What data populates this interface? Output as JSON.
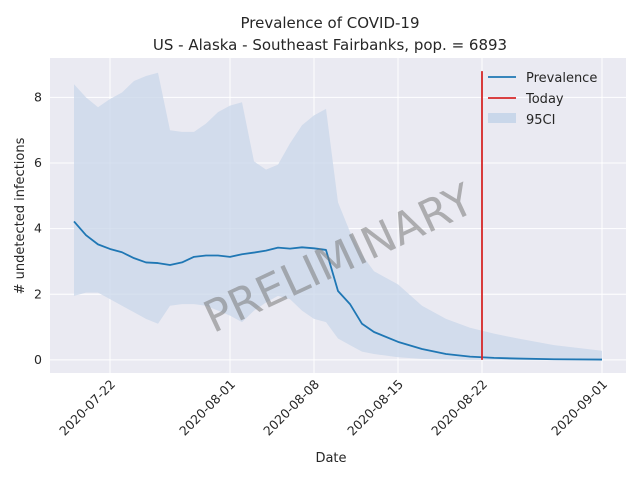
{
  "chart_data": {
    "type": "line",
    "title": "Prevalence of COVID-19",
    "subtitle": "US - Alaska - Southeast Fairbanks, pop. = 6893",
    "xlabel": "Date",
    "ylabel": "# undetected infections",
    "watermark": "PRELIMINARY",
    "x_ticks": [
      "2020-07-22",
      "2020-08-01",
      "2020-08-08",
      "2020-08-15",
      "2020-08-22",
      "2020-09-01"
    ],
    "y_ticks": [
      0,
      2,
      4,
      6,
      8
    ],
    "ylim": [
      -0.4,
      9.2
    ],
    "xlim": [
      "2020-07-17",
      "2020-09-03"
    ],
    "grid": true,
    "legend_position": "top-right",
    "legend": [
      "Prevalence",
      "Today",
      "95CI"
    ],
    "colors": {
      "prevalence": "#1f77b4",
      "today": "#d62728",
      "ci": "#c9d7ea",
      "background": "#eaeaf2",
      "grid": "#ffffff"
    },
    "today": "2020-08-22",
    "series": [
      {
        "name": "Prevalence",
        "dates": [
          "2020-07-19",
          "2020-07-20",
          "2020-07-21",
          "2020-07-22",
          "2020-07-23",
          "2020-07-24",
          "2020-07-25",
          "2020-07-26",
          "2020-07-27",
          "2020-07-28",
          "2020-07-29",
          "2020-07-30",
          "2020-07-31",
          "2020-08-01",
          "2020-08-02",
          "2020-08-03",
          "2020-08-04",
          "2020-08-05",
          "2020-08-06",
          "2020-08-07",
          "2020-08-08",
          "2020-08-09",
          "2020-08-10",
          "2020-08-11",
          "2020-08-12",
          "2020-08-13",
          "2020-08-15",
          "2020-08-17",
          "2020-08-19",
          "2020-08-21",
          "2020-08-23",
          "2020-08-25",
          "2020-08-28",
          "2020-09-01"
        ],
        "values": [
          4.22,
          3.8,
          3.52,
          3.38,
          3.28,
          3.1,
          2.97,
          2.95,
          2.89,
          2.97,
          3.14,
          3.18,
          3.18,
          3.14,
          3.22,
          3.27,
          3.33,
          3.42,
          3.39,
          3.43,
          3.4,
          3.35,
          2.1,
          1.7,
          1.1,
          0.85,
          0.55,
          0.33,
          0.18,
          0.1,
          0.06,
          0.04,
          0.02,
          0.01
        ]
      },
      {
        "name": "95CI",
        "dates": [
          "2020-07-19",
          "2020-07-20",
          "2020-07-21",
          "2020-07-22",
          "2020-07-23",
          "2020-07-24",
          "2020-07-25",
          "2020-07-26",
          "2020-07-27",
          "2020-07-28",
          "2020-07-29",
          "2020-07-30",
          "2020-07-31",
          "2020-08-01",
          "2020-08-02",
          "2020-08-03",
          "2020-08-04",
          "2020-08-05",
          "2020-08-06",
          "2020-08-07",
          "2020-08-08",
          "2020-08-09",
          "2020-08-10",
          "2020-08-11",
          "2020-08-12",
          "2020-08-13",
          "2020-08-15",
          "2020-08-17",
          "2020-08-19",
          "2020-08-21",
          "2020-08-23",
          "2020-08-25",
          "2020-08-28",
          "2020-09-01"
        ],
        "upper": [
          8.4,
          8.0,
          7.7,
          7.95,
          8.15,
          8.5,
          8.65,
          8.75,
          7.0,
          6.95,
          6.95,
          7.2,
          7.55,
          7.75,
          7.85,
          6.05,
          5.8,
          5.95,
          6.6,
          7.15,
          7.45,
          7.65,
          4.8,
          3.9,
          3.2,
          2.7,
          2.3,
          1.65,
          1.25,
          0.98,
          0.8,
          0.65,
          0.45,
          0.28
        ],
        "lower": [
          1.95,
          2.05,
          2.05,
          1.85,
          1.65,
          1.45,
          1.25,
          1.1,
          1.65,
          1.7,
          1.7,
          1.65,
          1.5,
          1.35,
          1.15,
          1.5,
          1.75,
          1.95,
          1.85,
          1.5,
          1.25,
          1.15,
          0.65,
          0.45,
          0.25,
          0.18,
          0.08,
          0.03,
          0.01,
          0.0,
          0.0,
          0.0,
          0.0,
          0.0
        ]
      }
    ]
  }
}
